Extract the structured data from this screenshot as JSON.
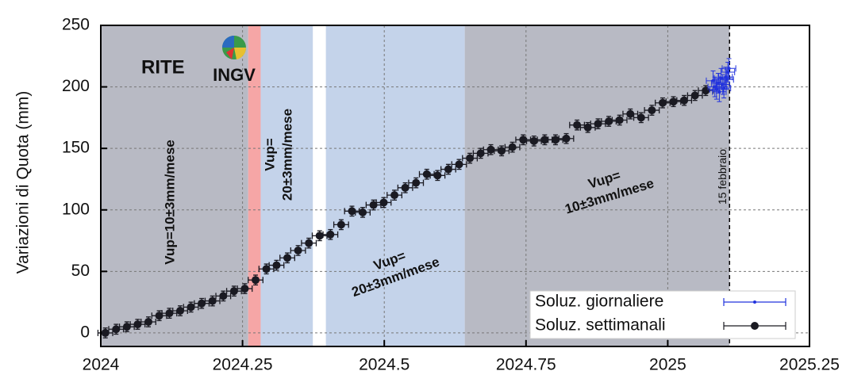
{
  "chart_data": {
    "type": "scatter",
    "ylabel": "Variazioni di Quota (mm)",
    "xlim": [
      2024,
      2025.25
    ],
    "ylim": [
      -11,
      250
    ],
    "xticks": [
      2024,
      2024.25,
      2024.5,
      2024.75,
      2025,
      2025.25
    ],
    "yticks": [
      0,
      50,
      100,
      150,
      200,
      250
    ],
    "grid": true,
    "legend": "lower right",
    "station": "RITE",
    "logo_text": "INGV",
    "bands": [
      {
        "x": [
          2024,
          2024.26
        ],
        "color": "#b8bac4"
      },
      {
        "x": [
          2024.26,
          2024.282
        ],
        "color": "#f6a6a6"
      },
      {
        "x": [
          2024.282,
          2024.374
        ],
        "color": "#c4d3ea"
      },
      {
        "x": [
          2024.397,
          2024.642
        ],
        "color": "#c4d3ea"
      },
      {
        "x": [
          2024.642,
          2025.109
        ],
        "color": "#b8bac4"
      }
    ],
    "event": {
      "x": 2025.109,
      "label": "15 febbraio"
    },
    "annotations": [
      {
        "lines": [
          "Vup=10±3mm/mese"
        ]
      },
      {
        "lines": [
          "Vup=",
          "20±3mm/mese"
        ]
      },
      {
        "lines": [
          "Vup=",
          "20±3mm/mese"
        ]
      },
      {
        "lines": [
          "Vup=",
          "10±3mm/mese"
        ]
      }
    ],
    "series": [
      {
        "name": "Soluz. giornaliere",
        "color": "#2233dd",
        "xerr": 0.012,
        "yerr": 8,
        "x": [
          2025.08,
          2025.083,
          2025.086,
          2025.089,
          2025.091,
          2025.094,
          2025.097,
          2025.099,
          2025.102,
          2025.104,
          2025.106,
          2025.108
        ],
        "values": [
          205,
          200,
          198,
          203,
          196,
          207,
          202,
          199,
          208,
          206,
          212,
          215
        ]
      },
      {
        "name": "Soluz. settimanali",
        "color": "#1a1a22",
        "xerr": 0.013,
        "yerr": 4,
        "x": [
          2024.008,
          2024.027,
          2024.046,
          2024.065,
          2024.084,
          2024.103,
          2024.121,
          2024.14,
          2024.159,
          2024.178,
          2024.197,
          2024.216,
          2024.235,
          2024.254,
          2024.273,
          2024.292,
          2024.31,
          2024.329,
          2024.348,
          2024.367,
          2024.386,
          2024.405,
          2024.424,
          2024.443,
          2024.462,
          2024.481,
          2024.499,
          2024.518,
          2024.537,
          2024.556,
          2024.575,
          2024.594,
          2024.613,
          2024.632,
          2024.651,
          2024.67,
          2024.688,
          2024.707,
          2024.726,
          2024.745,
          2024.764,
          2024.783,
          2024.802,
          2024.821,
          2024.84,
          2024.859,
          2024.877,
          2024.896,
          2024.915,
          2024.934,
          2024.953,
          2024.972,
          2024.991,
          2025.01,
          2025.029,
          2025.048,
          2025.067
        ],
        "values": [
          0,
          3,
          5,
          7,
          9,
          14,
          16,
          18,
          21,
          24,
          26,
          30,
          34,
          36,
          43,
          52,
          55,
          61,
          67,
          73,
          79,
          80,
          88,
          99,
          98,
          104,
          106,
          112,
          118,
          122,
          129,
          128,
          133,
          137,
          142,
          146,
          149,
          148,
          151,
          157,
          156,
          157,
          157,
          158,
          169,
          167,
          170,
          172,
          173,
          178,
          175,
          181,
          187,
          188,
          189,
          193,
          197
        ]
      }
    ]
  }
}
